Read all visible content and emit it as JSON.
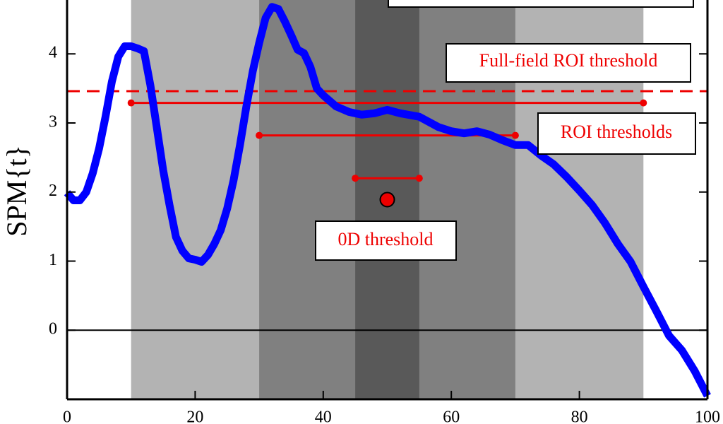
{
  "chart_data": {
    "type": "line",
    "y_label": "SPM{t}",
    "x": [
      0,
      1,
      2,
      3,
      4,
      5,
      6,
      7,
      8,
      9,
      10,
      11,
      12,
      13,
      14,
      15,
      16,
      17,
      18,
      19,
      20,
      21,
      22,
      23,
      24,
      25,
      26,
      27,
      28,
      29,
      30,
      31,
      32,
      33,
      34,
      35,
      36,
      37,
      38,
      39,
      40,
      42,
      44,
      46,
      48,
      50,
      52,
      55,
      58,
      60,
      62,
      64,
      66,
      68,
      70,
      72,
      74,
      76,
      78,
      80,
      82,
      84,
      86,
      88,
      90,
      92,
      94,
      96,
      98,
      100
    ],
    "series": [
      {
        "color": "#0000ff",
        "values": [
          1.99,
          1.88,
          1.88,
          2.0,
          2.27,
          2.63,
          3.09,
          3.6,
          3.96,
          4.11,
          4.11,
          4.08,
          4.04,
          3.55,
          2.94,
          2.32,
          1.81,
          1.35,
          1.15,
          1.04,
          1.02,
          0.99,
          1.09,
          1.25,
          1.45,
          1.76,
          2.17,
          2.68,
          3.24,
          3.75,
          4.16,
          4.52,
          4.68,
          4.65,
          4.47,
          4.27,
          4.06,
          4.01,
          3.81,
          3.5,
          3.4,
          3.24,
          3.16,
          3.12,
          3.14,
          3.19,
          3.14,
          3.09,
          2.94,
          2.88,
          2.85,
          2.88,
          2.83,
          2.75,
          2.68,
          2.68,
          2.53,
          2.4,
          2.22,
          2.02,
          1.81,
          1.55,
          1.25,
          0.99,
          0.63,
          0.28,
          -0.08,
          -0.29,
          -0.59,
          -0.95
        ]
      }
    ],
    "xlim": [
      0,
      100
    ],
    "ylim": [
      -1,
      4.78
    ],
    "xticks": [
      0,
      20,
      40,
      60,
      80,
      100
    ],
    "yticks": [
      0,
      1,
      2,
      3,
      4
    ],
    "regions": [
      {
        "x": [
          10,
          90
        ],
        "color": "#b3b3b3"
      },
      {
        "x": [
          30,
          70
        ],
        "color": "#808080"
      },
      {
        "x": [
          45,
          55
        ],
        "color": "#595959"
      }
    ],
    "full_field_threshold": {
      "value": 3.46,
      "label": "Full-field ROI threshold"
    },
    "roi_thresholds": {
      "label": "ROI thresholds",
      "segments": [
        {
          "x": [
            10,
            90
          ],
          "value": 3.29
        },
        {
          "x": [
            30,
            70
          ],
          "value": 2.82
        }
      ]
    },
    "zero_d_threshold": {
      "label": "0D threshold",
      "x": [
        45,
        55
      ],
      "value": 2.2
    },
    "point": {
      "x": 50,
      "y": 1.89
    },
    "threshold_color": "#ee0000"
  }
}
